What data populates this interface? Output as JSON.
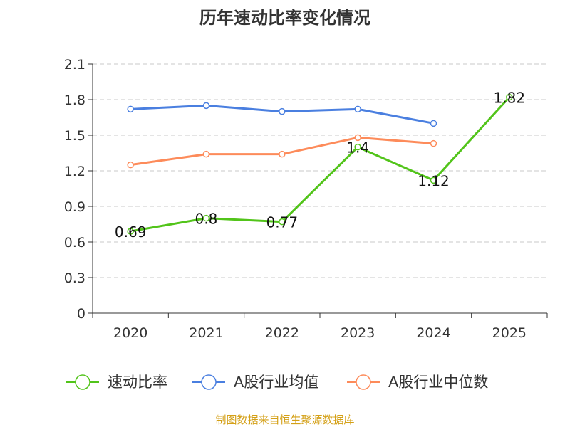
{
  "chart_data": {
    "type": "line",
    "title": "历年速动比率变化情况",
    "categories": [
      "2020",
      "2021",
      "2022",
      "2023",
      "2024",
      "2025"
    ],
    "ylim": [
      0,
      2.1
    ],
    "yticks": [
      "0",
      "0.3",
      "0.6",
      "0.9",
      "1.2",
      "1.5",
      "1.8",
      "2.1"
    ],
    "ytick_values": [
      0,
      0.3,
      0.6,
      0.9,
      1.2,
      1.5,
      1.8,
      2.1
    ],
    "grid": true,
    "legend_position": "bottom",
    "series": [
      {
        "name": "速动比率",
        "color": "#52c41a",
        "values": [
          0.69,
          0.8,
          0.77,
          1.4,
          1.12,
          1.82
        ],
        "labels": [
          "0.69",
          "0.8",
          "0.77",
          "1.4",
          "1.12",
          "1.82"
        ]
      },
      {
        "name": "A股行业均值",
        "color": "#4a7fe0",
        "values": [
          1.72,
          1.75,
          1.7,
          1.72,
          1.6,
          null
        ]
      },
      {
        "name": "A股行业中位数",
        "color": "#fd8b5a",
        "values": [
          1.25,
          1.34,
          1.34,
          1.48,
          1.43,
          null
        ]
      }
    ],
    "source": "制图数据来自恒生聚源数据库",
    "source_color": "#d4a017"
  }
}
